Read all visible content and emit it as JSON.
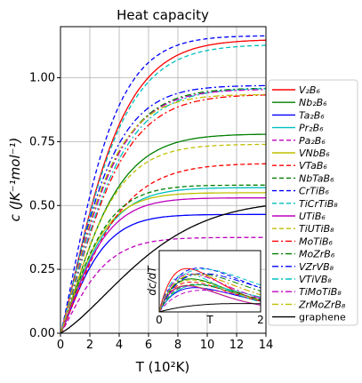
{
  "chart_data": {
    "type": "line",
    "title": "Heat capacity",
    "xlabel": "T (10²K)",
    "ylabel": "c (JK⁻¹mol⁻¹)",
    "xlim": [
      0,
      14
    ],
    "ylim": [
      0,
      1.2
    ],
    "xticks": [
      "0",
      "2",
      "4",
      "6",
      "8",
      "10",
      "12",
      "14"
    ],
    "yticks": [
      "0.00",
      "0.25",
      "0.50",
      "0.75",
      "1.00"
    ],
    "grid": true,
    "legend_position": "right",
    "series": [
      {
        "name": "V₂B₆",
        "color": "#ff0000",
        "dash": "solid",
        "cmax": 1.15
      },
      {
        "name": "Nb₂B₆",
        "color": "#008000",
        "dash": "solid",
        "cmax": 0.78
      },
      {
        "name": "Ta₂B₆",
        "color": "#0000ff",
        "dash": "solid",
        "cmax": 0.465
      },
      {
        "name": "Pr₂B₆",
        "color": "#00bfbf",
        "dash": "solid",
        "cmax": 0.57
      },
      {
        "name": "Pa₂B₆",
        "color": "#bf00bf",
        "dash": "dashed",
        "cmax": 0.375
      },
      {
        "name": "VNbB₆",
        "color": "#bfbf00",
        "dash": "solid",
        "cmax": 0.55
      },
      {
        "name": "VTaB₆",
        "color": "#ff0000",
        "dash": "dashed",
        "cmax": 0.665
      },
      {
        "name": "NbTaB₆",
        "color": "#008000",
        "dash": "dashed",
        "cmax": 0.58
      },
      {
        "name": "CrTiB₆",
        "color": "#0000ff",
        "dash": "dashed",
        "cmax": 1.165
      },
      {
        "name": "TiCrTiB₈",
        "color": "#00bfbf",
        "dash": "dashed",
        "cmax": 1.13
      },
      {
        "name": "UTiB₆",
        "color": "#bf00bf",
        "dash": "solid",
        "cmax": 0.53
      },
      {
        "name": "TiUTiB₈",
        "color": "#bfbf00",
        "dash": "dashed",
        "cmax": 0.74
      },
      {
        "name": "MoTiB₆",
        "color": "#ff0000",
        "dash": "dashdot",
        "cmax": 0.935
      },
      {
        "name": "MoZrB₆",
        "color": "#008000",
        "dash": "dashdot",
        "cmax": 0.96
      },
      {
        "name": "VZrVB₈",
        "color": "#0000ff",
        "dash": "dashdot",
        "cmax": 0.97
      },
      {
        "name": "VTiVB₈",
        "color": "#00bfbf",
        "dash": "dashdot",
        "cmax": 0.96
      },
      {
        "name": "TiMoTiB₈",
        "color": "#bf00bf",
        "dash": "dashdot",
        "cmax": 0.955
      },
      {
        "name": "ZrMoZrB₈",
        "color": "#bfbf00",
        "dash": "dashdot",
        "cmax": 0.935
      },
      {
        "name": "graphene",
        "color": "#000000",
        "dash": "solid",
        "cmax": 0.52
      }
    ],
    "inset": {
      "ylabel": "dc/dT",
      "xlabel": "T",
      "xlim": [
        0,
        2
      ],
      "xticks": [
        "0",
        "2"
      ]
    }
  }
}
